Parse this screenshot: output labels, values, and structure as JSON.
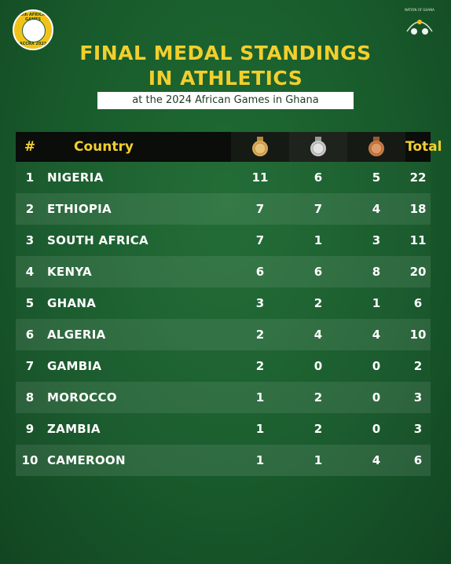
{
  "logo_left": {
    "line1": "13th AFRICAN GAMES",
    "line2": "ACCRA 2023"
  },
  "logo_right": {
    "text": "NATION OF GHANA"
  },
  "title_line1": "FINAL MEDAL STANDINGS",
  "title_line2": "IN ATHLETICS",
  "subtitle": "at the 2024 African Games in Ghana",
  "headers": {
    "rank": "#",
    "country": "Country",
    "total": "Total"
  },
  "medal_icons": [
    "gold-medal-icon",
    "silver-medal-icon",
    "bronze-medal-icon"
  ],
  "colors": {
    "background": "#185a2b",
    "title": "#f2cf2c",
    "gold": "#d9a957",
    "silver": "#c8c8c8",
    "bronze": "#c87a45"
  },
  "rows": [
    {
      "rank": "1",
      "country": "NIGERIA",
      "gold": "11",
      "silver": "6",
      "bronze": "5",
      "total": "22"
    },
    {
      "rank": "2",
      "country": "ETHIOPIA",
      "gold": "7",
      "silver": "7",
      "bronze": "4",
      "total": "18"
    },
    {
      "rank": "3",
      "country": "SOUTH AFRICA",
      "gold": "7",
      "silver": "1",
      "bronze": "3",
      "total": "11"
    },
    {
      "rank": "4",
      "country": "KENYA",
      "gold": "6",
      "silver": "6",
      "bronze": "8",
      "total": "20"
    },
    {
      "rank": "5",
      "country": "GHANA",
      "gold": "3",
      "silver": "2",
      "bronze": "1",
      "total": "6"
    },
    {
      "rank": "6",
      "country": "ALGERIA",
      "gold": "2",
      "silver": "4",
      "bronze": "4",
      "total": "10"
    },
    {
      "rank": "7",
      "country": "GAMBIA",
      "gold": "2",
      "silver": "0",
      "bronze": "0",
      "total": "2"
    },
    {
      "rank": "8",
      "country": "MOROCCO",
      "gold": "1",
      "silver": "2",
      "bronze": "0",
      "total": "3"
    },
    {
      "rank": "9",
      "country": "ZAMBIA",
      "gold": "1",
      "silver": "2",
      "bronze": "0",
      "total": "3"
    },
    {
      "rank": "10",
      "country": "CAMEROON",
      "gold": "1",
      "silver": "1",
      "bronze": "4",
      "total": "6"
    }
  ]
}
